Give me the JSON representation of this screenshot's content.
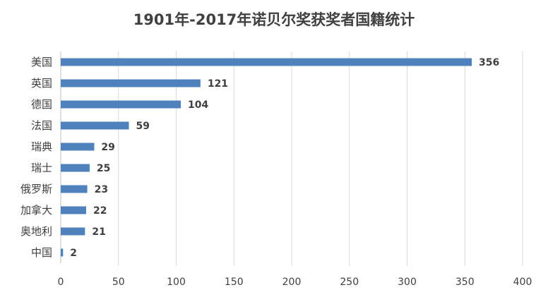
{
  "chart_data": {
    "type": "bar",
    "orientation": "horizontal",
    "title": "1901年-2017年诺贝尔奖获奖者国籍统计",
    "categories": [
      "美国",
      "英国",
      "德国",
      "法国",
      "瑞典",
      "瑞士",
      "俄罗斯",
      "加拿大",
      "奥地利",
      "中国"
    ],
    "values": [
      356,
      121,
      104,
      59,
      29,
      25,
      23,
      22,
      21,
      2
    ],
    "xlim": [
      0,
      400
    ],
    "xticks": [
      0,
      50,
      100,
      150,
      200,
      250,
      300,
      350,
      400
    ],
    "grid": "vertical",
    "legend": "none",
    "bar_color": "#4f81bd",
    "gridline_color": "#d9d9d9",
    "text_color": "#404040"
  }
}
